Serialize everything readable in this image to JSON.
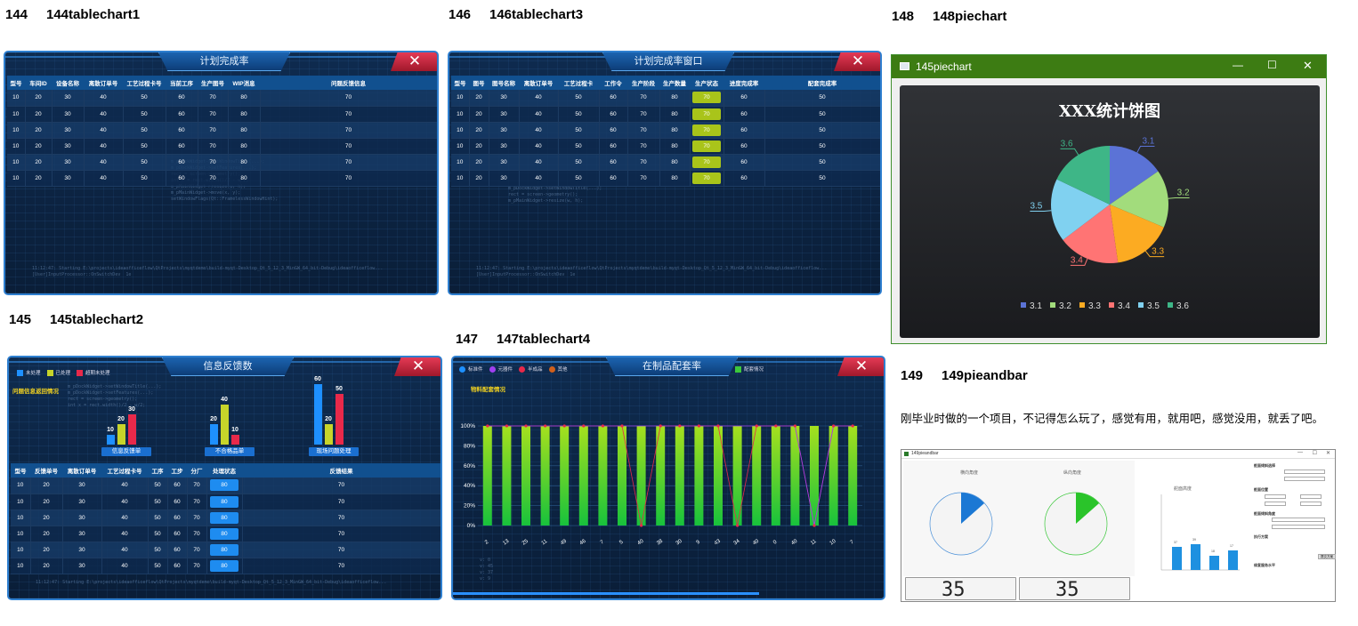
{
  "captions": [
    {
      "num": "144",
      "name": "144tablechart1"
    },
    {
      "num": "146",
      "name": "146tablechart3"
    },
    {
      "num": "148",
      "name": "148piechart"
    },
    {
      "num": "145",
      "name": "145tablechart2"
    },
    {
      "num": "147",
      "name": "147tablechart4"
    },
    {
      "num": "149",
      "name": "149pieandbar"
    }
  ],
  "close_glyph": "✕",
  "t1": {
    "title": "计划完成率",
    "headers": [
      "型号",
      "车间ID",
      "设备名称",
      "离散订单号",
      "工艺过程卡号",
      "当前工序",
      "生产图号",
      "WIP消息",
      "问题反馈信息"
    ],
    "rows": [
      [
        "10",
        "20",
        "30",
        "40",
        "50",
        "60",
        "70",
        "80",
        "70"
      ],
      [
        "10",
        "20",
        "30",
        "40",
        "50",
        "60",
        "70",
        "80",
        "70"
      ],
      [
        "10",
        "20",
        "30",
        "40",
        "50",
        "60",
        "70",
        "80",
        "70"
      ],
      [
        "10",
        "20",
        "30",
        "40",
        "50",
        "60",
        "70",
        "80",
        "70"
      ],
      [
        "10",
        "20",
        "30",
        "40",
        "50",
        "60",
        "70",
        "80",
        "70"
      ],
      [
        "10",
        "20",
        "30",
        "40",
        "50",
        "60",
        "70",
        "80",
        "70"
      ]
    ]
  },
  "t3": {
    "title": "计划完成率窗口",
    "headers": [
      "型号",
      "图号",
      "图号名称",
      "离散订单号",
      "工艺过程卡",
      "工作令",
      "生产阶段",
      "生产数量",
      "生产状态",
      "进度完成率",
      "配套完成率"
    ],
    "rows": [
      [
        "10",
        "20",
        "30",
        "40",
        "50",
        "60",
        "70",
        "80",
        "70",
        "60",
        "50"
      ],
      [
        "10",
        "20",
        "30",
        "40",
        "50",
        "60",
        "70",
        "80",
        "70",
        "60",
        "50"
      ],
      [
        "10",
        "20",
        "30",
        "40",
        "50",
        "60",
        "70",
        "80",
        "70",
        "60",
        "50"
      ],
      [
        "10",
        "20",
        "30",
        "40",
        "50",
        "60",
        "70",
        "80",
        "70",
        "60",
        "50"
      ],
      [
        "10",
        "20",
        "30",
        "40",
        "50",
        "60",
        "70",
        "80",
        "70",
        "60",
        "50"
      ],
      [
        "10",
        "20",
        "30",
        "40",
        "50",
        "60",
        "70",
        "80",
        "70",
        "60",
        "50"
      ]
    ],
    "status_color": "#a9c41a"
  },
  "t2": {
    "title": "信息反馈数",
    "legend": [
      {
        "label": "未处理",
        "color": "#1e90ff"
      },
      {
        "label": "已处理",
        "color": "#c7d42a"
      },
      {
        "label": "超期未处理",
        "color": "#e8294a"
      }
    ],
    "subtitle": "问题信息返回情况",
    "groups": [
      {
        "label": "信息反馈单",
        "values": [
          10,
          20,
          30
        ]
      },
      {
        "label": "不合格品单",
        "values": [
          20,
          40,
          10
        ]
      },
      {
        "label": "现场问题处理",
        "values": [
          60,
          20,
          50
        ]
      }
    ],
    "headers": [
      "型号",
      "反馈单号",
      "离散订单号",
      "工艺过程卡号",
      "工序",
      "工步",
      "分厂",
      "处理状态",
      "反馈结果"
    ],
    "rows": [
      [
        "10",
        "20",
        "30",
        "40",
        "50",
        "60",
        "70",
        "80",
        "70"
      ],
      [
        "10",
        "20",
        "30",
        "40",
        "50",
        "60",
        "70",
        "80",
        "70"
      ],
      [
        "10",
        "20",
        "30",
        "40",
        "50",
        "60",
        "70",
        "80",
        "70"
      ],
      [
        "10",
        "20",
        "30",
        "40",
        "50",
        "60",
        "70",
        "80",
        "70"
      ],
      [
        "10",
        "20",
        "30",
        "40",
        "50",
        "60",
        "70",
        "80",
        "70"
      ],
      [
        "10",
        "20",
        "30",
        "40",
        "50",
        "60",
        "70",
        "80",
        "70"
      ]
    ],
    "status_color": "#1e8cf0"
  },
  "t4": {
    "title": "在制品配套率",
    "legend": [
      {
        "label": "标准件",
        "color": "#1e90ff"
      },
      {
        "label": "元器件",
        "color": "#a040f0"
      },
      {
        "label": "半成品",
        "color": "#e8294a"
      },
      {
        "label": "其他",
        "color": "#d0601c"
      }
    ],
    "legend_right": {
      "label": "配套情况",
      "color": "#3cc83c"
    },
    "subtitle": "物料配套情况",
    "yticks": [
      "100%",
      "80%",
      "60%",
      "40%",
      "20%",
      "0%"
    ],
    "chart_data": {
      "type": "bar",
      "categories": [
        "2",
        "13",
        "25",
        "11",
        "49",
        "46",
        "7",
        "5",
        "40",
        "38",
        "30",
        "9",
        "43",
        "34",
        "40",
        "0",
        "40",
        "11",
        "10",
        "7"
      ],
      "values": [
        100,
        100,
        100,
        100,
        100,
        100,
        100,
        100,
        100,
        100,
        100,
        100,
        100,
        100,
        100,
        100,
        100,
        100,
        100,
        100
      ],
      "ylim": [
        0,
        100
      ]
    }
  },
  "pie": {
    "title": "145piechart",
    "min_glyph": "—",
    "max_glyph": "☐",
    "close_glyph": "✕",
    "chart_data": {
      "type": "pie",
      "title": "XXX统计饼图",
      "labels": [
        "3.1",
        "3.2",
        "3.3",
        "3.4",
        "3.5",
        "3.6"
      ],
      "values": [
        3.1,
        3.2,
        3.3,
        3.4,
        3.5,
        3.6
      ],
      "colors": [
        "#5b73d6",
        "#a2dc7c",
        "#fcab22",
        "#ff7474",
        "#80d1f0",
        "#3eb687"
      ],
      "legend_position": "bottom"
    }
  },
  "p149": {
    "desc": "刚毕业时做的一个项目，不记得怎么玩了，感觉有用，就用吧，感觉没用，就丢了吧。",
    "win_title": "149pieandbar",
    "pie1_title": "横向角度",
    "pie2_title": "纵向角度",
    "bar_title": "舵面高度",
    "readout1": "35",
    "readout2": "35",
    "bar_values": [
      "37",
      "39",
      "18",
      "17"
    ],
    "side_labels": [
      "舵面倾斜选择",
      "舵面位置",
      "舵面倾斜角度",
      "执行方案",
      "修复服务水平"
    ],
    "apply": "提交方案"
  }
}
